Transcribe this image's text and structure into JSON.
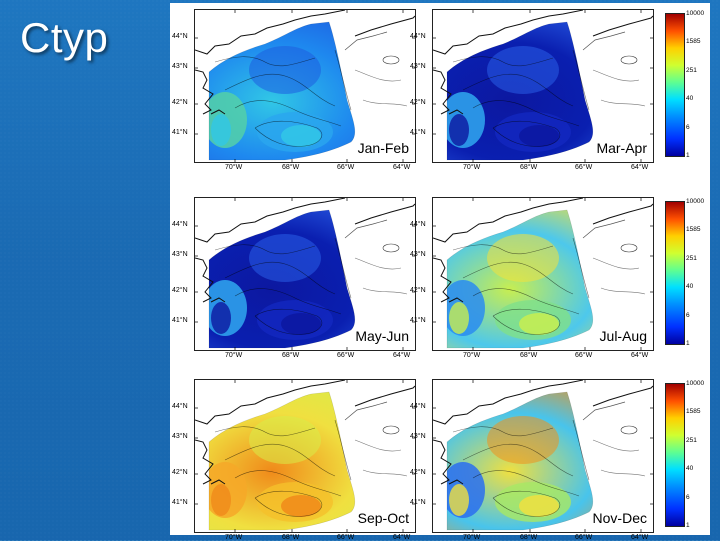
{
  "title": "Ctyp",
  "colors": {
    "background": "#1a6ab3",
    "deep_blue": "#0a1fb0",
    "blue": "#1f6ff0",
    "cyan": "#29c6e8",
    "green": "#7fe08a",
    "yellow": "#f2e23a",
    "orange": "#f08a1a",
    "red": "#b01010"
  },
  "axes": {
    "lat_labels": [
      "44°N",
      "43°N",
      "42°N",
      "41°N"
    ],
    "lon_labels": [
      "70°W",
      "68°W",
      "66°W",
      "64°W"
    ]
  },
  "colorbar_ticks": [
    "10000",
    "1585",
    "251",
    "40",
    "6",
    "1"
  ],
  "panels": [
    {
      "label": "Jan-Feb",
      "scheme": "blue-cyan"
    },
    {
      "label": "Mar-Apr",
      "scheme": "deep-blue"
    },
    {
      "label": "May-Jun",
      "scheme": "deep-blue"
    },
    {
      "label": "Jul-Aug",
      "scheme": "cyan-green-yellow"
    },
    {
      "label": "Sep-Oct",
      "scheme": "yellow-orange"
    },
    {
      "label": "Nov-Dec",
      "scheme": "cyan-yellow-orange"
    }
  ]
}
